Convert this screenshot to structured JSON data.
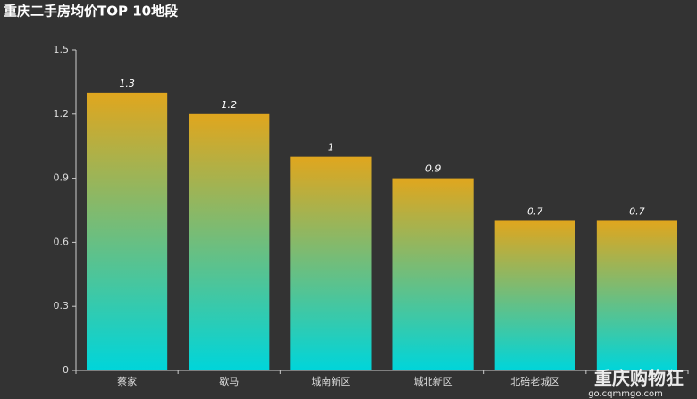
{
  "chart_data": {
    "type": "bar",
    "title": "重庆二手房均价TOP 10地段",
    "categories": [
      "蔡家",
      "歇马",
      "城南新区",
      "城北新区",
      "北碚老城区",
      null
    ],
    "values": [
      1.3,
      1.2,
      1,
      0.9,
      0.7,
      0.7
    ],
    "color": [
      "#e0a61e",
      "#00d5da"
    ],
    "ylim": [
      0,
      1.5
    ],
    "yticks": [
      0,
      0.3,
      0.6,
      0.9,
      1.2,
      1.5
    ],
    "grid": false
  },
  "watermark": {
    "name": "重庆购物狂",
    "url": "go.cqmmgo.com"
  }
}
